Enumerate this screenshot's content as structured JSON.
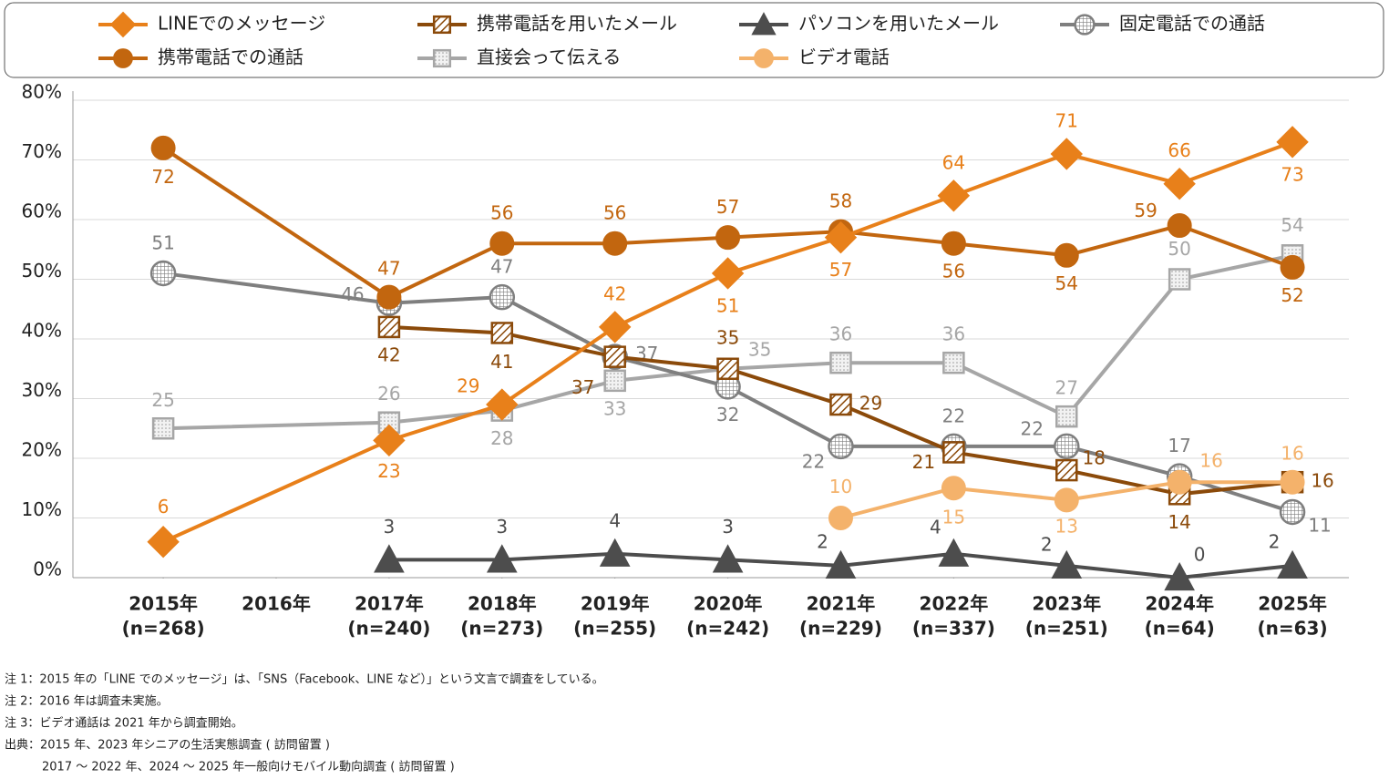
{
  "chart_data": {
    "type": "line",
    "xticks": [
      {
        "value": 2015,
        "label": "2015年"
      },
      {
        "value": 2016,
        "label": "2016年"
      },
      {
        "value": 2017,
        "label": "2017年"
      },
      {
        "value": 2018,
        "label": "2018年"
      },
      {
        "value": 2019,
        "label": "2019年"
      },
      {
        "value": 2020,
        "label": "2020年"
      },
      {
        "value": 2021,
        "label": "2021年"
      },
      {
        "value": 2022,
        "label": "2022年"
      },
      {
        "value": 2023,
        "label": "2023年"
      },
      {
        "value": 2024,
        "label": "2024年"
      },
      {
        "value": 2025,
        "label": "2025年"
      }
    ],
    "sample_sizes": [
      "(n=268)",
      null,
      "(n=240)",
      "(n=273)",
      "(n=255)",
      "(n=242)",
      "(n=229)",
      "(n=337)",
      "(n=251)",
      "(n=64)",
      "(n=63)"
    ],
    "xlim": [
      2014.2,
      2025.5
    ],
    "ylim": [
      0,
      80
    ],
    "yticks": [
      {
        "value": 0,
        "label": "0%"
      },
      {
        "value": 10,
        "label": "10%"
      },
      {
        "value": 20,
        "label": "20%"
      },
      {
        "value": 30,
        "label": "30%"
      },
      {
        "value": 40,
        "label": "40%"
      },
      {
        "value": 50,
        "label": "50%"
      },
      {
        "value": 60,
        "label": "60%"
      },
      {
        "value": 70,
        "label": "70%"
      },
      {
        "value": 80,
        "label": "80%"
      }
    ],
    "grid": true,
    "series": [
      {
        "name": "LINEでのメッセージ",
        "color": "#e8801a",
        "marker": "diamond",
        "marker_fill": "solid",
        "x": [
          2015,
          2017,
          2018,
          2019,
          2020,
          2021,
          2022,
          2023,
          2024,
          2025
        ],
        "values": [
          6,
          23,
          29,
          42,
          51,
          57,
          64,
          71,
          66,
          73
        ]
      },
      {
        "name": "携帯電話を用いたメール",
        "color": "#8b4a0a",
        "marker": "square",
        "marker_fill": "hatch",
        "x": [
          2017,
          2018,
          2019,
          2020,
          2021,
          2022,
          2023,
          2024,
          2025
        ],
        "values": [
          42,
          41,
          37,
          35,
          29,
          21,
          18,
          14,
          16
        ]
      },
      {
        "name": "パソコンを用いたメール",
        "color": "#4d4d4d",
        "marker": "triangle",
        "marker_fill": "solid",
        "x": [
          2017,
          2018,
          2019,
          2020,
          2021,
          2022,
          2023,
          2024,
          2025
        ],
        "values": [
          3,
          3,
          4,
          3,
          2,
          4,
          2,
          0,
          2
        ]
      },
      {
        "name": "固定電話での通話",
        "color": "#7f7f7f",
        "marker": "circle",
        "marker_fill": "grid",
        "x": [
          2015,
          2017,
          2018,
          2019,
          2020,
          2021,
          2022,
          2023,
          2024,
          2025
        ],
        "values": [
          51,
          46,
          47,
          37,
          32,
          22,
          22,
          22,
          17,
          11
        ]
      },
      {
        "name": "携帯電話での通話",
        "color": "#c2660f",
        "marker": "circle",
        "marker_fill": "solid",
        "x": [
          2015,
          2017,
          2018,
          2019,
          2020,
          2021,
          2022,
          2023,
          2024,
          2025
        ],
        "values": [
          72,
          47,
          56,
          56,
          57,
          58,
          56,
          54,
          59,
          52
        ]
      },
      {
        "name": "直接会って伝える",
        "color": "#a6a6a6",
        "marker": "square",
        "marker_fill": "dots",
        "x": [
          2015,
          2017,
          2018,
          2019,
          2020,
          2021,
          2022,
          2023,
          2024,
          2025
        ],
        "values": [
          25,
          26,
          28,
          33,
          35,
          36,
          36,
          27,
          50,
          54
        ]
      },
      {
        "name": "ビデオ電話",
        "color": "#f4b26b",
        "marker": "circle",
        "marker_fill": "solid",
        "x": [
          2021,
          2022,
          2023,
          2024,
          2025
        ],
        "values": [
          10,
          15,
          13,
          16,
          16
        ]
      }
    ],
    "notes": [
      "注 1：2015 年の「LINE でのメッセージ」は、「SNS（Facebook、LINE など）」という文言で調査をしている。",
      "注 2：2016 年は調査未実施。",
      "注 3：ビデオ通話は 2021 年から調査開始。",
      "出典：2015 年、2023 年シニアの生活実態調査 ( 訪問留置 )",
      "2017 ～ 2022 年、2024 ～ 2025 年一般向けモバイル動向調査 ( 訪問留置 )"
    ]
  }
}
